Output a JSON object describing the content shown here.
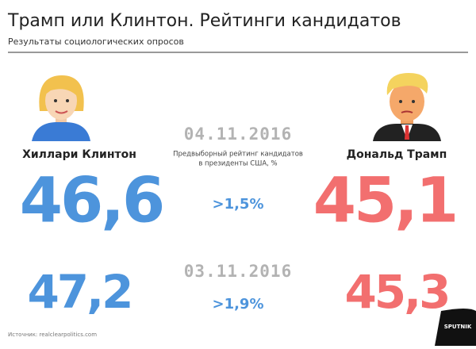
{
  "header": {
    "title": "Трамп или Клинтон. Рейтинги кандидатов",
    "subtitle": "Результаты социологических опросов"
  },
  "candidates": [
    {
      "name": "Хиллари Клинтон",
      "color": "#4d94dc"
    },
    {
      "name": "Дональд Трамп",
      "color": "#f26f6f"
    }
  ],
  "caption": [
    "Предвыборный рейтинг кандидатов",
    "в президенты США, %"
  ],
  "lead_color": "#4d94dc",
  "polls": [
    {
      "date": "04.11.2016",
      "values": [
        "46,6",
        "45,1"
      ],
      "lead": ">1,5%"
    },
    {
      "date": "03.11.2016",
      "values": [
        "47,2",
        "45,3"
      ],
      "lead": ">1,9%"
    }
  ],
  "source": "Источник: realclearpolitics.com",
  "logo": "SPUTNIK"
}
